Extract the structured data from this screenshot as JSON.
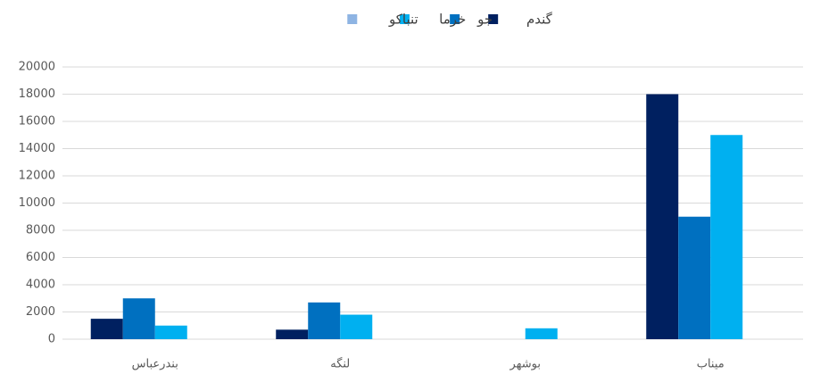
{
  "chart_data": {
    "type": "bar",
    "categories": [
      "بندرعباس",
      "لنگه",
      "بوشهر",
      "میناب"
    ],
    "series": [
      {
        "name": "گندم",
        "color": "#002060",
        "values": [
          1500,
          700,
          0,
          18000
        ]
      },
      {
        "name": "جو",
        "color": "#0070c0",
        "values": [
          3000,
          2700,
          0,
          9000
        ]
      },
      {
        "name": "خرما",
        "color": "#00b0f0",
        "values": [
          1000,
          1800,
          800,
          15000
        ]
      },
      {
        "name": "تنباکو",
        "color": "#8eb4e3",
        "values": [
          0,
          0,
          0,
          0
        ]
      }
    ],
    "ylim": [
      0,
      20000
    ],
    "yticks": [
      0,
      2000,
      4000,
      6000,
      8000,
      10000,
      12000,
      14000,
      16000,
      18000,
      20000
    ],
    "grid": true,
    "legend": "top"
  }
}
